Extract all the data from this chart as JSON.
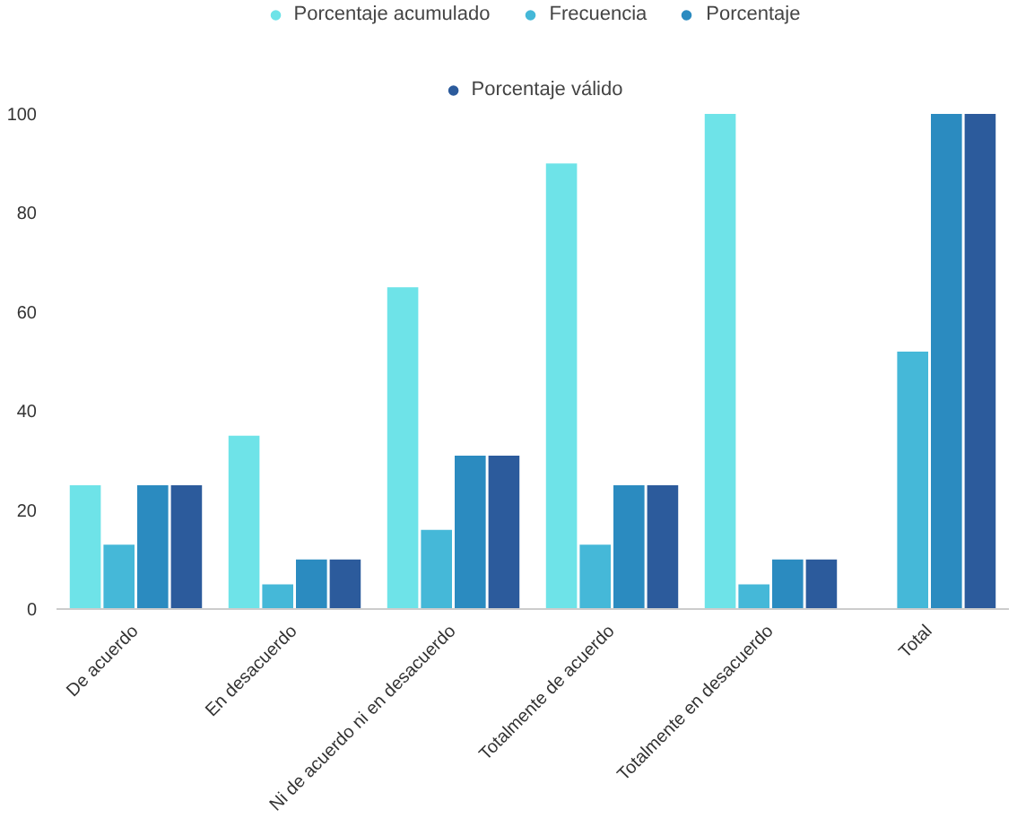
{
  "chart_data": {
    "type": "bar",
    "categories": [
      "De acuerdo",
      "En desacuerdo",
      "Ni de acuerdo ni en desacuerdo",
      "Totalmente de acuerdo",
      "Totalmente en desacuerdo",
      "Total"
    ],
    "series": [
      {
        "name": "Porcentaje acumulado",
        "color": "#6ee3e8",
        "values": [
          25,
          35,
          65,
          90,
          100,
          null
        ]
      },
      {
        "name": "Frecuencia",
        "color": "#45b8d8",
        "values": [
          13,
          5,
          16,
          13,
          5,
          52
        ]
      },
      {
        "name": "Porcentaje",
        "color": "#2b8bc0",
        "values": [
          25,
          10,
          31,
          25,
          10,
          100
        ]
      },
      {
        "name": "Porcentaje válido",
        "color": "#2c5b9c",
        "values": [
          25,
          10,
          31,
          25,
          10,
          100
        ]
      }
    ],
    "ylim": [
      0,
      100
    ],
    "yticks": [
      0,
      20,
      40,
      60,
      80,
      100
    ],
    "grid": false,
    "legend": "top"
  }
}
